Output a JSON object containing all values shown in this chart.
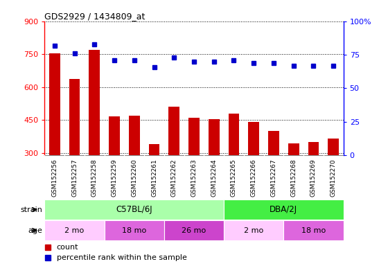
{
  "title": "GDS2929 / 1434809_at",
  "samples": [
    "GSM152256",
    "GSM152257",
    "GSM152258",
    "GSM152259",
    "GSM152260",
    "GSM152261",
    "GSM152262",
    "GSM152263",
    "GSM152264",
    "GSM152265",
    "GSM152266",
    "GSM152267",
    "GSM152268",
    "GSM152269",
    "GSM152270"
  ],
  "counts": [
    755,
    638,
    770,
    468,
    472,
    340,
    510,
    462,
    455,
    480,
    443,
    400,
    345,
    350,
    365
  ],
  "percentile": [
    82,
    76,
    83,
    71,
    71,
    66,
    73,
    70,
    70,
    71,
    69,
    69,
    67,
    67,
    67
  ],
  "ylim_left": [
    290,
    900
  ],
  "ylim_right": [
    0,
    100
  ],
  "yticks_left": [
    300,
    450,
    600,
    750,
    900
  ],
  "yticks_right": [
    0,
    25,
    50,
    75,
    100
  ],
  "bar_color": "#cc0000",
  "dot_color": "#0000cc",
  "strain_groups": [
    {
      "label": "C57BL/6J",
      "start": 0,
      "end": 9,
      "color": "#aaffaa"
    },
    {
      "label": "DBA/2J",
      "start": 9,
      "end": 15,
      "color": "#44ee44"
    }
  ],
  "age_groups": [
    {
      "label": "2 mo",
      "start": 0,
      "end": 3,
      "color": "#ffccff"
    },
    {
      "label": "18 mo",
      "start": 3,
      "end": 6,
      "color": "#ee88ee"
    },
    {
      "label": "26 mo",
      "start": 6,
      "end": 9,
      "color": "#ee44ee"
    },
    {
      "label": "2 mo",
      "start": 9,
      "end": 12,
      "color": "#ffccff"
    },
    {
      "label": "18 mo",
      "start": 12,
      "end": 15,
      "color": "#ee88ee"
    }
  ],
  "legend_count_label": "count",
  "legend_pct_label": "percentile rank within the sample",
  "strain_label": "strain",
  "age_label": "age",
  "xtick_bg_color": "#cccccc",
  "text_color": "#000000"
}
